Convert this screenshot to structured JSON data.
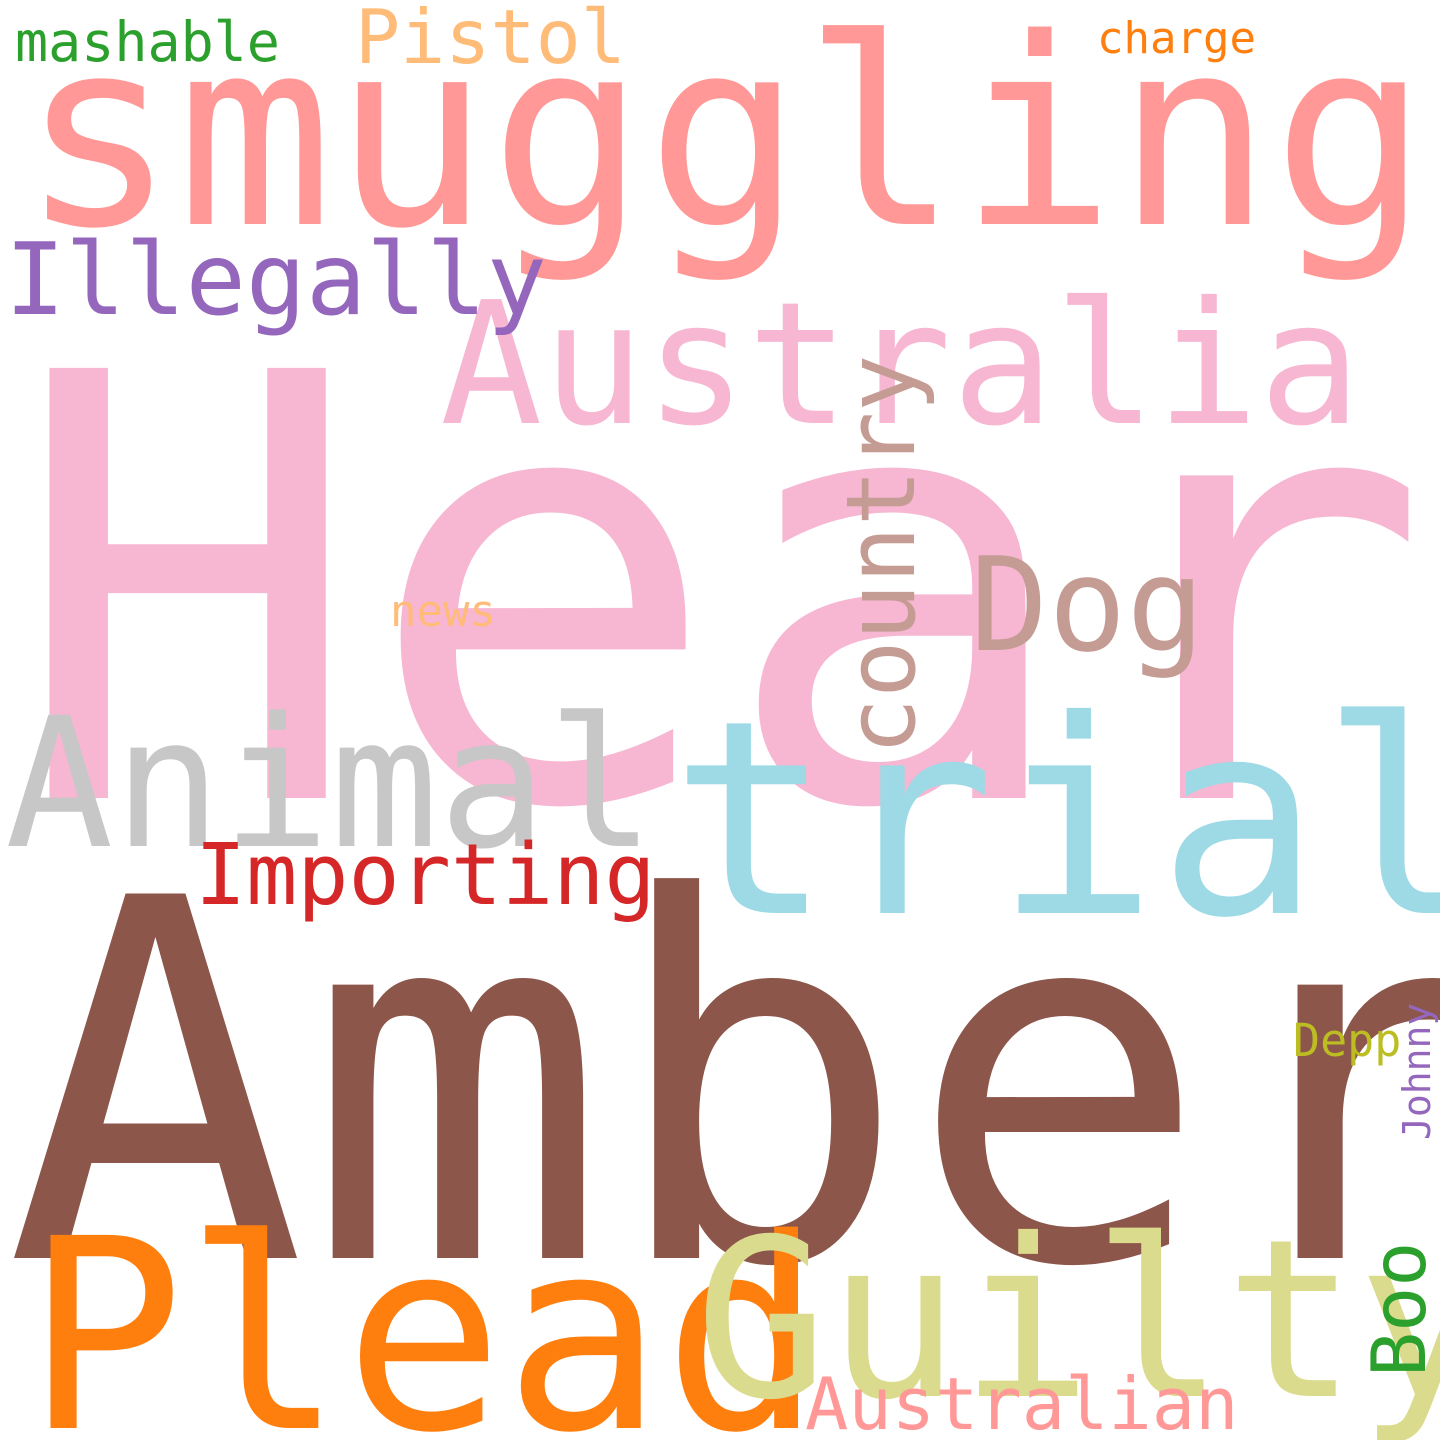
{
  "words": [
    {
      "id": "heard",
      "text": "Heard",
      "color": "#f7b6d2"
    },
    {
      "id": "amber",
      "text": "Amber",
      "color": "#8c564b"
    },
    {
      "id": "smuggling",
      "text": "smuggling",
      "color": "#ff9896"
    },
    {
      "id": "australia",
      "text": "Australia",
      "color": "#f7b6d2"
    },
    {
      "id": "trial",
      "text": "trial",
      "color": "#9edae5"
    },
    {
      "id": "animal",
      "text": "Animal",
      "color": "#c7c7c7"
    },
    {
      "id": "plead",
      "text": "Plead",
      "color": "#ff7f0e"
    },
    {
      "id": "guilty",
      "text": "Guilty",
      "color": "#dbdb8d"
    },
    {
      "id": "illegally",
      "text": "Illegally",
      "color": "#9467bd"
    },
    {
      "id": "dog",
      "text": "Dog",
      "color": "#c49c94"
    },
    {
      "id": "country",
      "text": "country",
      "color": "#c49c94",
      "orientation": "vertical"
    },
    {
      "id": "importing",
      "text": "Importing",
      "color": "#d62728"
    },
    {
      "id": "pistol",
      "text": "Pistol",
      "color": "#ffbb78"
    },
    {
      "id": "mashable",
      "text": "mashable",
      "color": "#2ca02c"
    },
    {
      "id": "charge",
      "text": "charge",
      "color": "#ff7f0e"
    },
    {
      "id": "news",
      "text": "news",
      "color": "#ffbb78"
    },
    {
      "id": "australian",
      "text": "Australian",
      "color": "#ff9896"
    },
    {
      "id": "boo",
      "text": "Boo",
      "color": "#2ca02c",
      "orientation": "vertical"
    },
    {
      "id": "depp",
      "text": "Depp",
      "color": "#bcbd22"
    },
    {
      "id": "johnny",
      "text": "Johnny",
      "color": "#9467bd",
      "orientation": "vertical"
    }
  ]
}
